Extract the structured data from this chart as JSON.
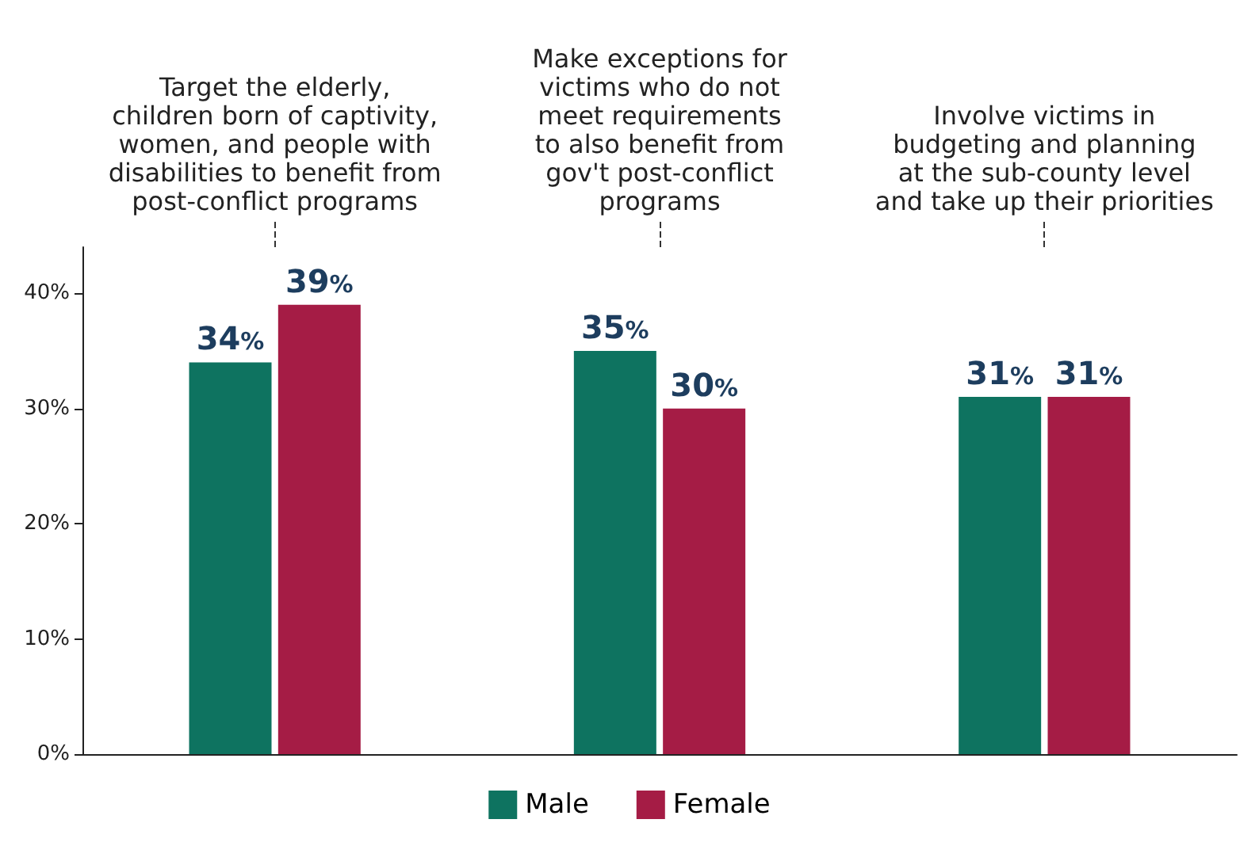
{
  "chart_data": {
    "type": "bar",
    "categories": [
      "Target the elderly,\nchildren born of captivity,\nwomen, and people with\ndisabilities to benefit from\npost-conflict programs",
      "Make exceptions for\nvictims who do not\nmeet requirements\nto also benefit from\ngov't post-conflict\nprograms",
      "Involve victims in\nbudgeting and planning\nat the sub-county level\nand take up their priorities"
    ],
    "series": [
      {
        "name": "Male",
        "color": "#0e7360",
        "values": [
          34,
          35,
          31
        ],
        "value_labels": [
          "34%",
          "35%",
          "31%"
        ]
      },
      {
        "name": "Female",
        "color": "#a51c45",
        "values": [
          39,
          30,
          31
        ],
        "value_labels": [
          "39%",
          "30%",
          "31%"
        ]
      }
    ],
    "ylim": [
      0,
      44
    ],
    "yticks": [
      {
        "value": 0,
        "label": "0%"
      },
      {
        "value": 10,
        "label": "10%"
      },
      {
        "value": 20,
        "label": "20%"
      },
      {
        "value": 30,
        "label": "30%"
      },
      {
        "value": 40,
        "label": "40%"
      }
    ],
    "grid": false,
    "legend": "bottom"
  }
}
